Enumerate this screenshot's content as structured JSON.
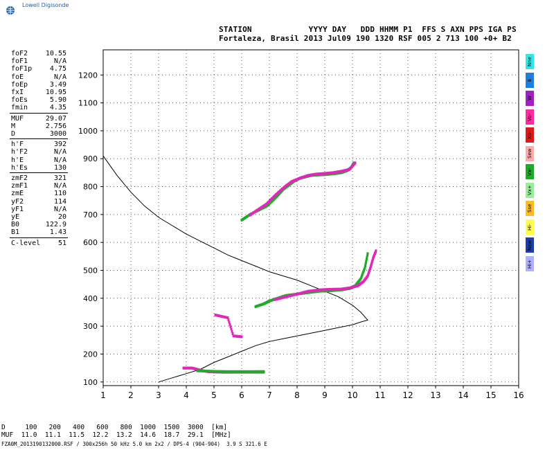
{
  "logo": {
    "text": "Lowell Digisonde"
  },
  "header": {
    "line1": "STATION            YYYY DAY   DDD HHMM P1  FFS S AXN PPS IGA PS",
    "line2": "Fortaleza, Brasil 2013 Jul09 190 1320 RSF 005 2 713 100 +0+ B2"
  },
  "params": {
    "group1": [
      {
        "name": "foF2",
        "value": "10.55"
      },
      {
        "name": "foF1",
        "value": "N/A"
      },
      {
        "name": "foF1p",
        "value": "4.75"
      },
      {
        "name": "foE",
        "value": "N/A"
      },
      {
        "name": "foEp",
        "value": "3.49"
      },
      {
        "name": "fxI",
        "value": "10.95"
      },
      {
        "name": "foEs",
        "value": "5.90"
      },
      {
        "name": "fmin",
        "value": "4.35"
      }
    ],
    "group2": [
      {
        "name": "MUF",
        "value": "29.07"
      },
      {
        "name": "M",
        "value": "2.756"
      },
      {
        "name": "D",
        "value": "3000"
      }
    ],
    "group3": [
      {
        "name": "h'F",
        "value": "392"
      },
      {
        "name": "h'F2",
        "value": "N/A"
      },
      {
        "name": "h'E",
        "value": "N/A"
      },
      {
        "name": "h'Es",
        "value": "130"
      }
    ],
    "group4": [
      {
        "name": "zmF2",
        "value": "321"
      },
      {
        "name": "zmF1",
        "value": "N/A"
      },
      {
        "name": "zmE",
        "value": "110"
      },
      {
        "name": "yF2",
        "value": "114"
      },
      {
        "name": "yF1",
        "value": "N/A"
      },
      {
        "name": "yE",
        "value": "20"
      },
      {
        "name": "B0",
        "value": "122.9"
      },
      {
        "name": "B1",
        "value": "1.43"
      }
    ],
    "group5": [
      {
        "name": "C-level",
        "value": "51"
      }
    ]
  },
  "legend": [
    {
      "label": "Nne",
      "color": "#33e6e6"
    },
    {
      "label": "E",
      "color": "#1f7fe0"
    },
    {
      "label": "W",
      "color": "#a020c0"
    },
    {
      "label": "Vo-",
      "color": "#ff2aa0"
    },
    {
      "label": "Xo-",
      "color": "#e01818"
    },
    {
      "label": "Sew",
      "color": "#ffaaaa"
    },
    {
      "label": "Vx-",
      "color": "#1faa2a"
    },
    {
      "label": "Vx+",
      "color": "#99ee99"
    },
    {
      "label": "Sse",
      "color": "#ffbb22"
    },
    {
      "label": "Hi-",
      "color": "#ffff44"
    },
    {
      "label": "New",
      "color": "#1a3fa8"
    },
    {
      "label": "Hi+",
      "color": "#b0b0ff"
    }
  ],
  "chart_data": {
    "type": "scatter",
    "title": "",
    "xlabel": "",
    "ylabel": "",
    "xlim": [
      1,
      16
    ],
    "ylim": [
      87,
      1290
    ],
    "xticks": [
      1,
      2,
      3,
      4,
      5,
      6,
      7,
      8,
      9,
      10,
      11,
      12,
      13,
      14,
      15,
      16
    ],
    "yticks": [
      100,
      200,
      300,
      400,
      500,
      600,
      700,
      800,
      900,
      1000,
      1100,
      1200
    ],
    "grid": true,
    "colors": {
      "o_trace": "#e028b8",
      "x_trace": "#1faa2a",
      "profile": "#000000"
    },
    "profile": {
      "x": [
        3.0,
        3.5,
        4.0,
        4.5,
        5.0,
        5.5,
        6.0,
        6.5,
        7.0,
        7.5,
        8.0,
        8.5,
        9.0,
        9.5,
        10.0,
        10.3,
        10.55,
        10.3,
        10.0,
        9.5,
        9.0,
        8.5,
        8.0,
        7.5,
        7.0,
        6.5,
        6.0,
        5.5,
        5.0,
        4.5,
        4.0,
        3.5,
        3.0,
        2.5,
        2.0,
        1.5,
        1.0
      ],
      "y": [
        100,
        115,
        130,
        145,
        170,
        190,
        210,
        230,
        245,
        255,
        265,
        275,
        285,
        295,
        305,
        315,
        322,
        350,
        375,
        405,
        425,
        445,
        465,
        480,
        495,
        515,
        535,
        555,
        580,
        605,
        630,
        660,
        690,
        730,
        780,
        840,
        910
      ]
    },
    "series": [
      {
        "x": [
          3.9,
          4.0,
          4.2,
          4.4,
          4.6,
          4.8,
          5.0,
          5.3,
          5.6,
          6.0,
          6.4,
          6.8
        ],
        "y": [
          150,
          150,
          150,
          145,
          140,
          137,
          136,
          135,
          135,
          135,
          135,
          135
        ]
      },
      {
        "x": [
          4.4,
          5.0,
          5.5,
          6.0,
          6.5,
          6.8
        ],
        "y": [
          140,
          138,
          137,
          137,
          137,
          137
        ]
      },
      {
        "x": [
          5.05,
          5.5,
          5.7,
          6.0
        ],
        "y": [
          340,
          330,
          265,
          262
        ]
      },
      {
        "x": [
          6.5,
          6.8,
          7.0,
          7.3,
          7.6,
          8.0,
          8.4,
          8.8,
          9.2,
          9.6,
          9.9,
          10.1,
          10.3,
          10.45,
          10.55
        ],
        "y": [
          370,
          380,
          390,
          400,
          410,
          415,
          420,
          425,
          427,
          430,
          435,
          445,
          470,
          510,
          560
        ]
      },
      {
        "x": [
          7.2,
          7.6,
          8.0,
          8.4,
          8.8,
          9.2,
          9.6,
          9.9,
          10.2,
          10.4,
          10.55,
          10.65,
          10.75,
          10.85
        ],
        "y": [
          395,
          405,
          415,
          425,
          430,
          432,
          433,
          437,
          445,
          460,
          480,
          510,
          545,
          570
        ]
      },
      {
        "x": [
          6.0,
          6.3,
          6.6,
          6.9,
          7.1,
          7.3,
          7.5,
          7.7,
          7.9,
          8.1,
          8.3,
          8.5,
          8.8,
          9.0,
          9.2,
          9.4,
          9.6,
          9.8,
          9.95,
          10.05
        ],
        "y": [
          680,
          700,
          715,
          730,
          748,
          768,
          790,
          805,
          820,
          830,
          835,
          840,
          842,
          843,
          845,
          847,
          850,
          857,
          868,
          885
        ]
      },
      {
        "x": [
          6.3,
          6.6,
          6.9,
          7.2,
          7.5,
          7.8,
          8.1,
          8.4,
          8.7,
          9.0,
          9.3,
          9.6,
          9.9,
          10.1
        ],
        "y": [
          698,
          718,
          738,
          768,
          795,
          818,
          830,
          840,
          845,
          847,
          850,
          855,
          862,
          885
        ]
      }
    ]
  },
  "bottom": {
    "line1": "D     100   200   400   600   800  1000  1500  3000  [km]",
    "line2": "MUF  11.0  11.1  11.5  12.2  13.2  14.6  18.7  29.1  [MHz]",
    "footer": "FZA0M_2013190132000.RSF / 300x256h 50 kHz 5.0 km 2x2 / DPS-4 (904-904)  3.9 S 321.6 E"
  }
}
